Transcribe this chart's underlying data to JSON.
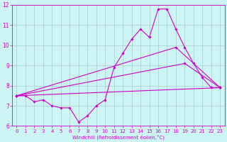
{
  "xlabel": "Windchill (Refroidissement éolien,°C)",
  "hours": [
    0,
    1,
    2,
    3,
    4,
    5,
    6,
    7,
    8,
    9,
    10,
    11,
    12,
    13,
    14,
    15,
    16,
    17,
    18,
    19,
    20,
    21,
    22,
    23
  ],
  "line1": [
    7.5,
    7.5,
    7.2,
    7.3,
    7.0,
    6.9,
    6.9,
    6.2,
    6.5,
    7.0,
    7.3,
    8.9,
    9.6,
    10.3,
    10.8,
    10.4,
    11.8,
    11.8,
    10.8,
    9.9,
    9.1,
    8.4,
    7.9,
    7.9
  ],
  "line2_x": [
    0,
    19,
    23
  ],
  "line2_y": [
    7.5,
    9.1,
    7.9
  ],
  "line3_x": [
    0,
    18,
    23
  ],
  "line3_y": [
    7.5,
    9.9,
    7.9
  ],
  "line4_x": [
    0,
    23
  ],
  "line4_y": [
    7.5,
    7.9
  ],
  "bg_color": "#cef5f5",
  "line_color": "#cc00cc",
  "grid_color": "#aacccc",
  "ylim": [
    6.0,
    12.0
  ],
  "xlim": [
    -0.5,
    23.5
  ],
  "yticks": [
    6,
    7,
    8,
    9,
    10,
    11,
    12
  ],
  "xticks": [
    0,
    1,
    2,
    3,
    4,
    5,
    6,
    7,
    8,
    9,
    10,
    11,
    12,
    13,
    14,
    15,
    16,
    17,
    18,
    19,
    20,
    21,
    22,
    23
  ],
  "tick_fontsize": 5.0,
  "xlabel_fontsize": 5.0,
  "marker_size": 1.8,
  "line_width": 0.8
}
